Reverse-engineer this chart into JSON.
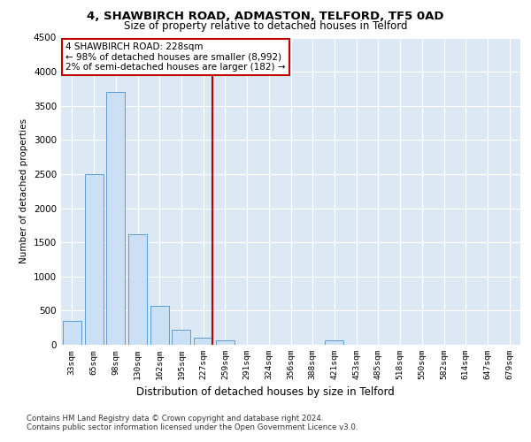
{
  "title": "4, SHAWBIRCH ROAD, ADMASTON, TELFORD, TF5 0AD",
  "subtitle": "Size of property relative to detached houses in Telford",
  "xlabel": "Distribution of detached houses by size in Telford",
  "ylabel": "Number of detached properties",
  "categories": [
    "33sqm",
    "65sqm",
    "98sqm",
    "130sqm",
    "162sqm",
    "195sqm",
    "227sqm",
    "259sqm",
    "291sqm",
    "324sqm",
    "356sqm",
    "388sqm",
    "421sqm",
    "453sqm",
    "485sqm",
    "518sqm",
    "550sqm",
    "582sqm",
    "614sqm",
    "647sqm",
    "679sqm"
  ],
  "values": [
    350,
    2500,
    3700,
    1625,
    575,
    225,
    100,
    60,
    0,
    0,
    0,
    0,
    60,
    0,
    0,
    0,
    0,
    0,
    0,
    0,
    0
  ],
  "bar_color": "#cce0f5",
  "bar_edge_color": "#5b9bd5",
  "vline_index": 6,
  "vline_color": "#c00000",
  "annotation_line1": "4 SHAWBIRCH ROAD: 228sqm",
  "annotation_line2": "← 98% of detached houses are smaller (8,992)",
  "annotation_line3": "2% of semi-detached houses are larger (182) →",
  "annotation_box_color": "#ffffff",
  "annotation_box_edgecolor": "#c00000",
  "ylim": [
    0,
    4500
  ],
  "yticks": [
    0,
    500,
    1000,
    1500,
    2000,
    2500,
    3000,
    3500,
    4000,
    4500
  ],
  "background_color": "#dce9f5",
  "footer_line1": "Contains HM Land Registry data © Crown copyright and database right 2024.",
  "footer_line2": "Contains public sector information licensed under the Open Government Licence v3.0."
}
